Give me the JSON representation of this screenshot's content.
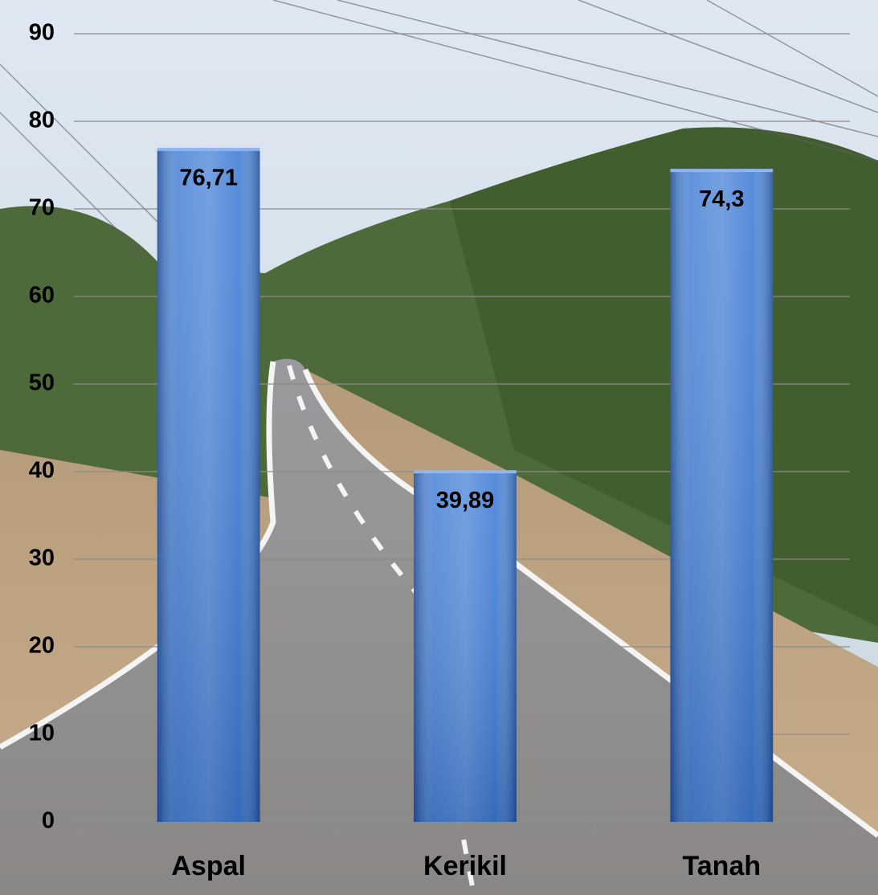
{
  "chart_data": {
    "type": "bar",
    "categories": [
      "Aspal",
      "Kerikil",
      "Tanah"
    ],
    "values": [
      76.71,
      39.89,
      74.3
    ],
    "value_labels": [
      "76,71",
      "39,89",
      "74,3"
    ],
    "color": "#3a78d4",
    "ylim": [
      0,
      90
    ],
    "yticks": [
      0,
      10,
      20,
      30,
      40,
      50,
      60,
      70,
      80,
      90
    ],
    "grid": true
  }
}
